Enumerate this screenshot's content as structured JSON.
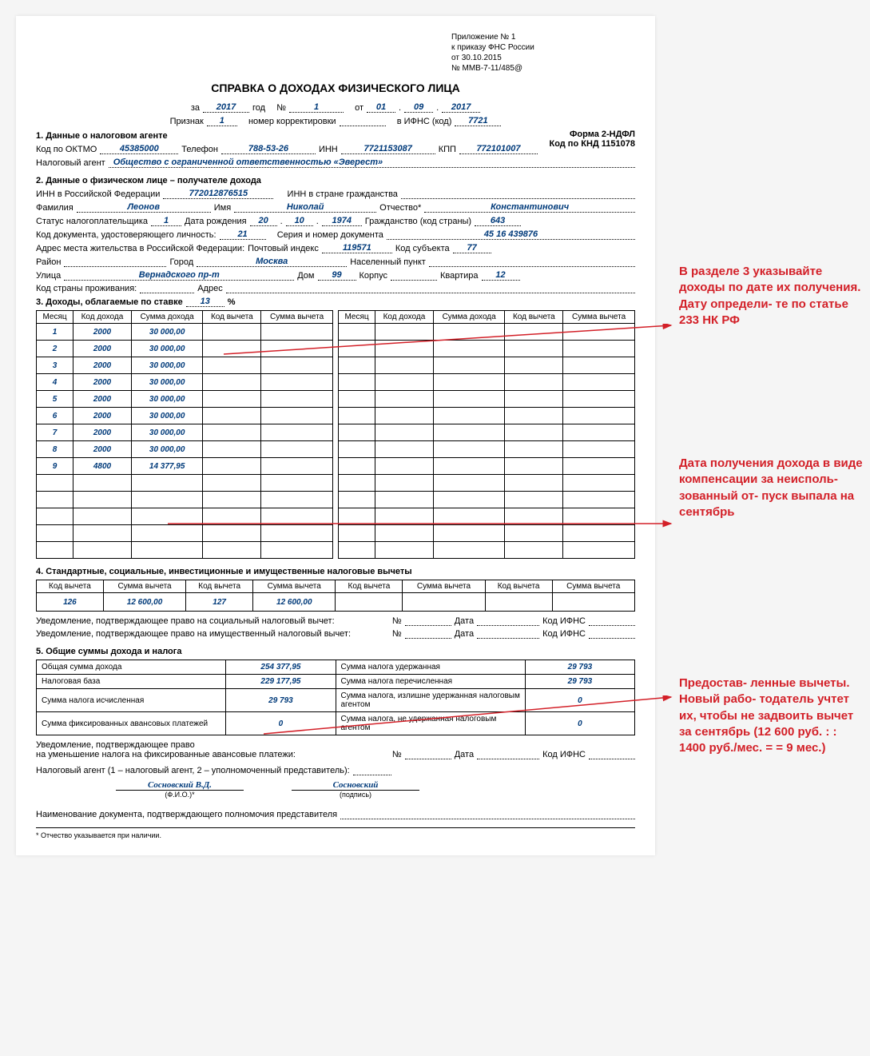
{
  "appendix": {
    "l1": "Приложение № 1",
    "l2": "к приказу ФНС России",
    "l3": "от 30.10.2015",
    "l4": "№ ММВ-7-11/485@"
  },
  "title": "СПРАВКА О ДОХОДАХ ФИЗИЧЕСКОГО ЛИЦА",
  "header": {
    "za": "за",
    "year": "2017",
    "god": "год",
    "no_lbl": "№",
    "no": "1",
    "ot": "от",
    "d": "01",
    "m": "09",
    "y": "2017",
    "priznak_lbl": "Признак",
    "priznak": "1",
    "korr_lbl": "номер корректировки",
    "korr": "",
    "ifns_lbl": "в ИФНС (код)",
    "ifns": "7721"
  },
  "form_code": {
    "l1": "Форма 2-НДФЛ",
    "l2": "Код по КНД 1151078"
  },
  "s1": {
    "head": "1. Данные о налоговом агенте",
    "oktmo_lbl": "Код по ОКТМО",
    "oktmo": "45385000",
    "tel_lbl": "Телефон",
    "tel": "788-53-26",
    "inn_lbl": "ИНН",
    "inn": "7721153087",
    "kpp_lbl": "КПП",
    "kpp": "772101007",
    "agent_lbl": "Налоговый агент",
    "agent": "Общество с ограниченной ответственностью «Эверест»"
  },
  "s2": {
    "head": "2. Данные о физическом лице – получателе дохода",
    "inn_rf_lbl": "ИНН в Российской Федерации",
    "inn_rf": "772012876515",
    "inn_gr_lbl": "ИНН в стране гражданства",
    "inn_gr": "",
    "fam_lbl": "Фамилия",
    "fam": "Леонов",
    "name_lbl": "Имя",
    "name": "Николай",
    "otch_lbl": "Отчество*",
    "otch": "Константинович",
    "status_lbl": "Статус налогоплательщика",
    "status": "1",
    "dob_lbl": "Дата рождения",
    "dob_d": "20",
    "dob_m": "10",
    "dob_y": "1974",
    "grazh_lbl": "Гражданство (код страны)",
    "grazh": "643",
    "doc_code_lbl": "Код документа, удостоверяющего личность:",
    "doc_code": "21",
    "doc_ser_lbl": "Серия и номер документа",
    "doc_ser": "45 16 439876",
    "addr_lbl": "Адрес места жительства в Российской Федерации:",
    "post_lbl": "Почтовый индекс",
    "post": "119571",
    "subj_lbl": "Код субъекта",
    "subj": "77",
    "raion_lbl": "Район",
    "raion": "",
    "city_lbl": "Город",
    "city": "Москва",
    "np_lbl": "Населенный пункт",
    "np": "",
    "street_lbl": "Улица",
    "street": "Вернадского пр-т",
    "dom_lbl": "Дом",
    "dom": "99",
    "korp_lbl": "Корпус",
    "korp": "",
    "kv_lbl": "Квартира",
    "kv": "12",
    "country_lbl": "Код страны проживания:",
    "addr2_lbl": "Адрес"
  },
  "s3": {
    "head_pre": "3. Доходы, облагаемые по ставке",
    "rate": "13",
    "pct": "%",
    "cols": [
      "Месяц",
      "Код дохода",
      "Сумма дохода",
      "Код вычета",
      "Сумма вычета"
    ],
    "rows": [
      [
        "1",
        "2000",
        "30 000,00",
        "",
        ""
      ],
      [
        "2",
        "2000",
        "30 000,00",
        "",
        ""
      ],
      [
        "3",
        "2000",
        "30 000,00",
        "",
        ""
      ],
      [
        "4",
        "2000",
        "30 000,00",
        "",
        ""
      ],
      [
        "5",
        "2000",
        "30 000,00",
        "",
        ""
      ],
      [
        "6",
        "2000",
        "30 000,00",
        "",
        ""
      ],
      [
        "7",
        "2000",
        "30 000,00",
        "",
        ""
      ],
      [
        "8",
        "2000",
        "30 000,00",
        "",
        ""
      ],
      [
        "9",
        "4800",
        "14 377,95",
        "",
        ""
      ]
    ],
    "blank_rows": 5
  },
  "s4": {
    "head": "4. Стандартные, социальные, инвестиционные и имущественные налоговые вычеты",
    "cols": [
      "Код вычета",
      "Сумма вычета",
      "Код вычета",
      "Сумма вычета",
      "Код вычета",
      "Сумма вычета",
      "Код вычета",
      "Сумма вычета"
    ],
    "row": [
      "126",
      "12 600,00",
      "127",
      "12 600,00",
      "",
      "",
      "",
      ""
    ],
    "uv1": "Уведомление, подтверждающее право на социальный налоговый вычет:",
    "uv2": "Уведомление, подтверждающее право на имущественный налоговый вычет:",
    "no_lbl": "№",
    "date_lbl": "Дата",
    "ifns_lbl": "Код ИФНС"
  },
  "s5": {
    "head": "5. Общие суммы дохода и налога",
    "rows": [
      [
        "Общая сумма дохода",
        "254 377,95",
        "Сумма налога удержанная",
        "29 793"
      ],
      [
        "Налоговая база",
        "229 177,95",
        "Сумма налога перечисленная",
        "29 793"
      ],
      [
        "Сумма налога исчисленная",
        "29 793",
        "Сумма налога, излишне удержанная налоговым агентом",
        "0"
      ],
      [
        "Сумма фиксированных авансовых платежей",
        "0",
        "Сумма налога, не удержанная налоговым агентом",
        "0"
      ]
    ],
    "uv": "Уведомление, подтверждающее право\nна уменьшение налога на фиксированные авансовые платежи:",
    "agent_type": "Налоговый агент (1 – налоговый агент, 2 – уполномоченный представитель):",
    "fio": "Сосновский В.Д.",
    "fio_lbl": "(Ф.И.О.)*",
    "sig": "Сосновский",
    "sig_lbl": "(подпись)",
    "rep_lbl": "Наименование документа, подтверждающего полномочия представителя",
    "footnote": "* Отчество указывается при наличии."
  },
  "annotations": {
    "a1": "В разделе 3 указывайте доходы по дате их получения. Дату определи- те по статье 233 НК РФ",
    "a2": "Дата получения дохода в виде компенсации за неисполь- зованный от- пуск выпала на сентябрь",
    "a3": "Предостав- ленные вычеты. Новый рабо- тодатель учтет их, чтобы не задвоить вычет за сентябрь (12 600 руб. : : 1400 руб./мес. = = 9 мес.)"
  },
  "colors": {
    "annot": "#d32028",
    "value": "#003a7a"
  }
}
